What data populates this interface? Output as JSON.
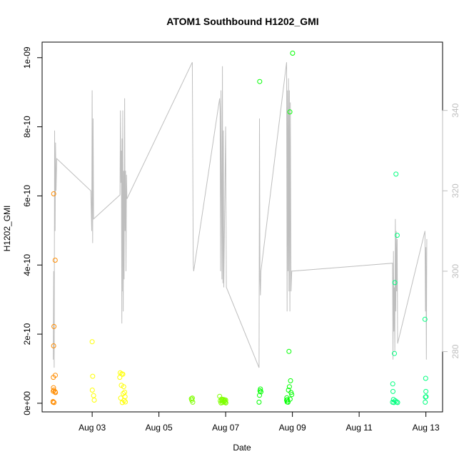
{
  "chart_data": {
    "type": "scatter",
    "title": "ATOM1 Southbound H1202_GMI",
    "xlabel": "Date",
    "ylabel": "H1202_GMI",
    "xlim": [
      "2019-08-01T12:00",
      "2019-08-13T12:00"
    ],
    "ylim": [
      -2.5e-11,
      1.045e-09
    ],
    "x_ticks": [
      {
        "label": "Aug 03",
        "value": "2019-08-03T00:00"
      },
      {
        "label": "Aug 05",
        "value": "2019-08-05T00:00"
      },
      {
        "label": "Aug 07",
        "value": "2019-08-07T00:00"
      },
      {
        "label": "Aug 09",
        "value": "2019-08-09T00:00"
      },
      {
        "label": "Aug 11",
        "value": "2019-08-11T00:00"
      },
      {
        "label": "Aug 13",
        "value": "2019-08-13T00:00"
      }
    ],
    "y_ticks": [
      {
        "label": "0e+00",
        "value": 0
      },
      {
        "label": "2e-10",
        "value": 2e-10
      },
      {
        "label": "4e-10",
        "value": 4e-10
      },
      {
        "label": "6e-10",
        "value": 6e-10
      },
      {
        "label": "8e-10",
        "value": 8e-10
      },
      {
        "label": "1e-09",
        "value": 1e-09
      }
    ],
    "y2lim": [
      265,
      357
    ],
    "y2_ticks": [
      {
        "label": "280",
        "value": 280
      },
      {
        "label": "300",
        "value": 300
      },
      {
        "label": "320",
        "value": 320
      },
      {
        "label": "340",
        "value": 340
      }
    ],
    "line_color": "#bebebe",
    "series": [
      {
        "color": "#ff8c00",
        "points": [
          [
            "2019-08-01T19:50",
            5e-12
          ],
          [
            "2019-08-01T19:55",
            3e-12
          ],
          [
            "2019-08-01T20:00",
            3.5e-11
          ],
          [
            "2019-08-01T20:05",
            7.5e-11
          ],
          [
            "2019-08-01T20:10",
            4.5e-11
          ],
          [
            "2019-08-01T20:15",
            1.66e-10
          ],
          [
            "2019-08-01T20:20",
            6.06e-10
          ],
          [
            "2019-08-01T20:25",
            3.8e-11
          ],
          [
            "2019-08-01T20:30",
            2.22e-10
          ],
          [
            "2019-08-01T20:35",
            2e-12
          ],
          [
            "2019-08-01T21:20",
            3.3e-11
          ],
          [
            "2019-08-01T21:25",
            4.14e-10
          ],
          [
            "2019-08-01T21:30",
            8.1e-11
          ],
          [
            "2019-08-01T21:35",
            3.1e-11
          ]
        ]
      },
      {
        "color": "#ffff00",
        "points": [
          [
            "2019-08-03T00:00",
            1.78e-10
          ],
          [
            "2019-08-03T00:05",
            3.8e-11
          ],
          [
            "2019-08-03T00:20",
            7.8e-11
          ],
          [
            "2019-08-03T01:00",
            2.2e-11
          ],
          [
            "2019-08-03T01:30",
            9e-12
          ],
          [
            "2019-08-03T19:50",
            7.5e-11
          ],
          [
            "2019-08-03T20:10",
            8.8e-11
          ],
          [
            "2019-08-03T20:30",
            1.5e-11
          ],
          [
            "2019-08-03T21:00",
            5.2e-11
          ],
          [
            "2019-08-03T21:20",
            8.5e-11
          ],
          [
            "2019-08-03T21:40",
            2e-12
          ],
          [
            "2019-08-03T22:00",
            8.4e-11
          ],
          [
            "2019-08-03T22:20",
            2.8e-11
          ],
          [
            "2019-08-03T22:40",
            4.8e-11
          ],
          [
            "2019-08-03T23:00",
            8e-12
          ],
          [
            "2019-08-03T23:20",
            3.2e-11
          ],
          [
            "2019-08-03T23:40",
            1.9e-11
          ],
          [
            "2019-08-03T23:50",
            4e-12
          ]
        ]
      },
      {
        "color": "#7fff00",
        "points": [
          [
            "2019-08-05T23:20",
            1.3e-11
          ],
          [
            "2019-08-05T23:40",
            9e-12
          ],
          [
            "2019-08-06T00:00",
            1.5e-11
          ],
          [
            "2019-08-06T00:20",
            3e-12
          ],
          [
            "2019-08-06T19:40",
            2e-11
          ],
          [
            "2019-08-06T20:10",
            7e-12
          ],
          [
            "2019-08-06T20:40",
            1e-12
          ],
          [
            "2019-08-06T21:00",
            1.2e-11
          ],
          [
            "2019-08-06T21:20",
            8e-12
          ],
          [
            "2019-08-06T21:40",
            2e-12
          ],
          [
            "2019-08-06T22:00",
            9e-12
          ],
          [
            "2019-08-06T22:20",
            1.1e-11
          ],
          [
            "2019-08-06T22:40",
            4e-12
          ],
          [
            "2019-08-06T23:00",
            7e-12
          ],
          [
            "2019-08-06T23:20",
            1e-11
          ],
          [
            "2019-08-06T23:40",
            3e-12
          ],
          [
            "2019-08-07T00:00",
            9e-12
          ],
          [
            "2019-08-07T00:10",
            1e-12
          ]
        ]
      },
      {
        "color": "#00ff00",
        "points": [
          [
            "2019-08-08T00:30",
            9.31e-10
          ],
          [
            "2019-08-08T00:00",
            3e-12
          ],
          [
            "2019-08-08T00:20",
            2.3e-11
          ],
          [
            "2019-08-08T00:40",
            3.6e-11
          ],
          [
            "2019-08-08T01:00",
            4.1e-11
          ],
          [
            "2019-08-08T01:20",
            3.3e-11
          ],
          [
            "2019-08-08T19:50",
            9e-12
          ],
          [
            "2019-08-08T20:00",
            1.6e-11
          ],
          [
            "2019-08-08T20:10",
            4e-12
          ],
          [
            "2019-08-08T20:30",
            1e-11
          ],
          [
            "2019-08-08T20:50",
            3e-12
          ],
          [
            "2019-08-08T21:10",
            3.8e-11
          ],
          [
            "2019-08-08T21:30",
            1.5e-10
          ],
          [
            "2019-08-08T21:50",
            4.8e-11
          ],
          [
            "2019-08-08T22:10",
            8.43e-10
          ],
          [
            "2019-08-08T22:20",
            1.2e-11
          ],
          [
            "2019-08-08T22:40",
            6.5e-11
          ],
          [
            "2019-08-08T23:00",
            3.1e-11
          ],
          [
            "2019-08-08T23:30",
            2.5e-11
          ],
          [
            "2019-08-09T00:10",
            1.013e-09
          ]
        ]
      },
      {
        "color": "#00ff7f",
        "points": [
          [
            "2019-08-12T00:00",
            3e-12
          ],
          [
            "2019-08-12T00:10",
            5.6e-11
          ],
          [
            "2019-08-12T00:20",
            3.4e-11
          ],
          [
            "2019-08-12T00:40",
            1.1e-11
          ],
          [
            "2019-08-12T01:00",
            2e-12
          ],
          [
            "2019-08-12T01:20",
            1.44e-10
          ],
          [
            "2019-08-12T01:40",
            3.49e-10
          ],
          [
            "2019-08-12T02:00",
            7e-12
          ],
          [
            "2019-08-12T02:30",
            6.63e-10
          ],
          [
            "2019-08-12T03:00",
            4e-12
          ],
          [
            "2019-08-12T03:20",
            4.86e-10
          ],
          [
            "2019-08-12T03:40",
            2e-12
          ],
          [
            "2019-08-12T23:20",
            2.43e-10
          ],
          [
            "2019-08-12T23:30",
            3e-12
          ],
          [
            "2019-08-12T23:40",
            1.8e-11
          ],
          [
            "2019-08-12T23:50",
            7.2e-11
          ],
          [
            "2019-08-13T00:00",
            3.4e-11
          ],
          [
            "2019-08-13T00:10",
            1.9e-11
          ]
        ]
      }
    ],
    "secondary_line": {
      "color": "#bebebe",
      "points": [
        [
          "2019-08-01T20:00",
          278
        ],
        [
          "2019-08-01T20:20",
          300
        ],
        [
          "2019-08-01T20:40",
          276
        ],
        [
          "2019-08-01T21:00",
          335
        ],
        [
          "2019-08-01T21:10",
          318
        ],
        [
          "2019-08-01T21:20",
          310
        ],
        [
          "2019-08-01T21:40",
          332
        ],
        [
          "2019-08-01T22:00",
          320
        ],
        [
          "2019-08-01T22:30",
          328
        ],
        [
          "2019-08-02T23:00",
          320
        ],
        [
          "2019-08-02T23:40",
          310
        ],
        [
          "2019-08-03T00:00",
          345
        ],
        [
          "2019-08-03T00:20",
          307
        ],
        [
          "2019-08-03T00:40",
          338
        ],
        [
          "2019-08-03T01:00",
          313
        ],
        [
          "2019-08-03T20:00",
          319
        ],
        [
          "2019-08-03T20:20",
          340
        ],
        [
          "2019-08-03T20:40",
          322
        ],
        [
          "2019-08-03T21:00",
          330
        ],
        [
          "2019-08-03T21:20",
          287
        ],
        [
          "2019-08-03T21:30",
          333
        ],
        [
          "2019-08-03T21:40",
          295
        ],
        [
          "2019-08-03T22:00",
          340
        ],
        [
          "2019-08-03T22:20",
          290
        ],
        [
          "2019-08-03T22:40",
          325
        ],
        [
          "2019-08-03T23:00",
          298
        ],
        [
          "2019-08-03T23:20",
          343
        ],
        [
          "2019-08-03T23:40",
          310
        ],
        [
          "2019-08-04T00:00",
          325
        ],
        [
          "2019-08-04T00:20",
          300
        ],
        [
          "2019-08-04T00:40",
          324
        ],
        [
          "2019-08-04T01:00",
          318
        ],
        [
          "2019-08-06T00:00",
          352
        ],
        [
          "2019-08-06T00:20",
          330
        ],
        [
          "2019-08-06T00:40",
          302
        ],
        [
          "2019-08-06T01:00",
          300
        ],
        [
          "2019-08-06T19:40",
          343
        ],
        [
          "2019-08-06T20:00",
          340
        ],
        [
          "2019-08-06T20:20",
          300
        ],
        [
          "2019-08-06T20:40",
          345
        ],
        [
          "2019-08-06T21:00",
          320
        ],
        [
          "2019-08-06T21:20",
          298
        ],
        [
          "2019-08-06T21:40",
          351
        ],
        [
          "2019-08-06T22:00",
          297
        ],
        [
          "2019-08-06T22:20",
          335
        ],
        [
          "2019-08-06T22:40",
          296
        ],
        [
          "2019-08-07T00:00",
          336
        ],
        [
          "2019-08-07T00:30",
          296
        ],
        [
          "2019-08-08T00:00",
          276
        ],
        [
          "2019-08-08T00:20",
          338
        ],
        [
          "2019-08-08T00:40",
          298
        ],
        [
          "2019-08-08T01:00",
          294
        ],
        [
          "2019-08-08T01:20",
          300
        ],
        [
          "2019-08-08T19:50",
          352
        ],
        [
          "2019-08-08T20:10",
          290
        ],
        [
          "2019-08-08T20:30",
          345
        ],
        [
          "2019-08-08T20:50",
          300
        ],
        [
          "2019-08-08T21:10",
          348
        ],
        [
          "2019-08-08T21:30",
          295
        ],
        [
          "2019-08-08T21:50",
          345
        ],
        [
          "2019-08-08T22:10",
          290
        ],
        [
          "2019-08-08T22:30",
          342
        ],
        [
          "2019-08-08T23:00",
          295
        ],
        [
          "2019-08-08T23:30",
          300
        ],
        [
          "2019-08-12T00:00",
          302
        ],
        [
          "2019-08-12T00:20",
          278
        ],
        [
          "2019-08-12T00:40",
          305
        ],
        [
          "2019-08-12T01:00",
          285
        ],
        [
          "2019-08-12T01:20",
          296
        ],
        [
          "2019-08-12T01:40",
          280
        ],
        [
          "2019-08-12T02:00",
          313
        ],
        [
          "2019-08-12T02:20",
          290
        ],
        [
          "2019-08-12T02:40",
          310
        ],
        [
          "2019-08-12T03:00",
          295
        ],
        [
          "2019-08-12T03:20",
          308
        ],
        [
          "2019-08-12T03:40",
          282
        ],
        [
          "2019-08-12T23:20",
          310
        ],
        [
          "2019-08-12T23:40",
          290
        ],
        [
          "2019-08-13T00:00",
          306
        ],
        [
          "2019-08-13T00:20",
          278
        ],
        [
          "2019-08-13T00:40",
          308
        ]
      ]
    }
  }
}
